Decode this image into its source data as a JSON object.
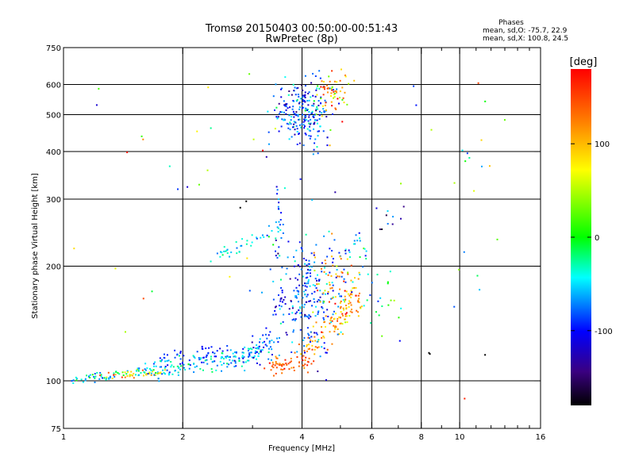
{
  "chart_data": {
    "type": "scatter",
    "title": "Tromsø 20150403 00:50:00-00:51:43",
    "subtitle": "RwPretec (8p)",
    "xlabel": "Frequency [MHz]",
    "ylabel": "Stationary phase Virtual Height [km]",
    "x_scale": "log",
    "y_scale": "log",
    "xlim": [
      1,
      16
    ],
    "ylim": [
      75,
      750
    ],
    "x_ticks": [
      1,
      2,
      4,
      6,
      8,
      10,
      16
    ],
    "x_tick_labels": [
      "1",
      "2",
      "4",
      "6",
      "8",
      "10",
      "16"
    ],
    "x_minor_ticks": [
      3,
      5,
      7,
      9,
      11,
      12,
      13,
      14,
      15
    ],
    "y_ticks": [
      75,
      100,
      200,
      300,
      400,
      500,
      600,
      750
    ],
    "y_tick_labels": [
      "75",
      "100",
      "200",
      "300",
      "400",
      "500",
      "600",
      "750"
    ],
    "x_grid": [
      2,
      4,
      6,
      8,
      10
    ],
    "y_grid": [
      100,
      200,
      300,
      400,
      500,
      600
    ],
    "stats": {
      "heading": "Phases",
      "line_o": "mean, sd,O: -75.7, 22.9",
      "line_x": "mean, sd,X: 100.8, 24.5"
    },
    "colorbar": {
      "label": "[deg]",
      "range": [
        -180,
        180
      ],
      "ticks": [
        100,
        0,
        -100
      ],
      "tick_labels": [
        "100",
        "0",
        "-100"
      ]
    },
    "clusters": [
      {
        "kind": "line",
        "x0": 1.05,
        "y0": 100,
        "x1": 1.6,
        "y1": 106,
        "n": 60,
        "xs": 0.04,
        "ys": 0.015,
        "phase": -40,
        "phs": 25
      },
      {
        "kind": "line",
        "x0": 1.3,
        "y0": 103,
        "x1": 1.8,
        "y1": 105,
        "n": 40,
        "xs": 0.04,
        "ys": 0.012,
        "phase": 90,
        "phs": 40
      },
      {
        "kind": "line",
        "x0": 1.6,
        "y0": 106,
        "x1": 3.2,
        "y1": 118,
        "n": 150,
        "xs": 0.03,
        "ys": 0.03,
        "phase": -55,
        "phs": 25
      },
      {
        "kind": "line",
        "x0": 1.8,
        "y0": 116,
        "x1": 2.6,
        "y1": 120,
        "n": 30,
        "xs": 0.03,
        "ys": 0.02,
        "phase": -95,
        "phs": 10
      },
      {
        "kind": "line",
        "x0": 2.6,
        "y0": 112,
        "x1": 3.5,
        "y1": 128,
        "n": 70,
        "xs": 0.03,
        "ys": 0.04,
        "phase": -75,
        "phs": 25
      },
      {
        "kind": "line",
        "x0": 3.3,
        "y0": 108,
        "x1": 4.2,
        "y1": 113,
        "n": 60,
        "xs": 0.025,
        "ys": 0.025,
        "phase": 140,
        "phs": 20
      },
      {
        "kind": "line",
        "x0": 4.0,
        "y0": 118,
        "x1": 5.6,
        "y1": 165,
        "n": 80,
        "xs": 0.02,
        "ys": 0.05,
        "phase": 115,
        "phs": 25
      },
      {
        "kind": "line",
        "x0": 5.0,
        "y0": 140,
        "x1": 5.5,
        "y1": 185,
        "n": 30,
        "xs": 0.02,
        "ys": 0.04,
        "phase": 95,
        "phs": 25
      },
      {
        "kind": "blob",
        "cx": 4.2,
        "cy": 165,
        "n": 230,
        "xs": 0.1,
        "ys": 0.17,
        "phase": -85,
        "phs": 25
      },
      {
        "kind": "blob",
        "cx": 4.9,
        "cy": 175,
        "n": 60,
        "xs": 0.06,
        "ys": 0.12,
        "phase": 110,
        "phs": 40
      },
      {
        "kind": "line",
        "x0": 3.5,
        "y0": 150,
        "x1": 3.5,
        "y1": 320,
        "n": 45,
        "xs": 0.015,
        "ys": 0.03,
        "phase": -80,
        "phs": 30
      },
      {
        "kind": "line",
        "x0": 2.4,
        "y0": 212,
        "x1": 3.3,
        "y1": 245,
        "n": 35,
        "xs": 0.02,
        "ys": 0.02,
        "phase": -45,
        "phs": 20
      },
      {
        "kind": "blob",
        "cx": 4.0,
        "cy": 505,
        "n": 230,
        "xs": 0.08,
        "ys": 0.1,
        "phase": -85,
        "phs": 30
      },
      {
        "kind": "blob",
        "cx": 4.8,
        "cy": 570,
        "n": 60,
        "xs": 0.06,
        "ys": 0.06,
        "phase": 95,
        "phs": 45
      },
      {
        "kind": "blob",
        "cx": 5.5,
        "cy": 210,
        "n": 25,
        "xs": 0.04,
        "ys": 0.08,
        "phase": -30,
        "phs": 40
      },
      {
        "kind": "blob",
        "cx": 6.6,
        "cy": 160,
        "n": 20,
        "xs": 0.08,
        "ys": 0.15,
        "phase": -20,
        "phs": 40
      },
      {
        "kind": "blob",
        "cx": 6.7,
        "cy": 265,
        "n": 10,
        "xs": 0.05,
        "ys": 0.06,
        "phase": -110,
        "phs": 30
      },
      {
        "kind": "blob",
        "cx": 2.5,
        "cy": 350,
        "n": 50,
        "xs": 0.55,
        "ys": 0.45,
        "phase": 0,
        "phs": 110
      },
      {
        "kind": "blob",
        "cx": 10.5,
        "cy": 300,
        "n": 25,
        "xs": 0.15,
        "ys": 0.55,
        "phase": 20,
        "phs": 120
      }
    ]
  }
}
